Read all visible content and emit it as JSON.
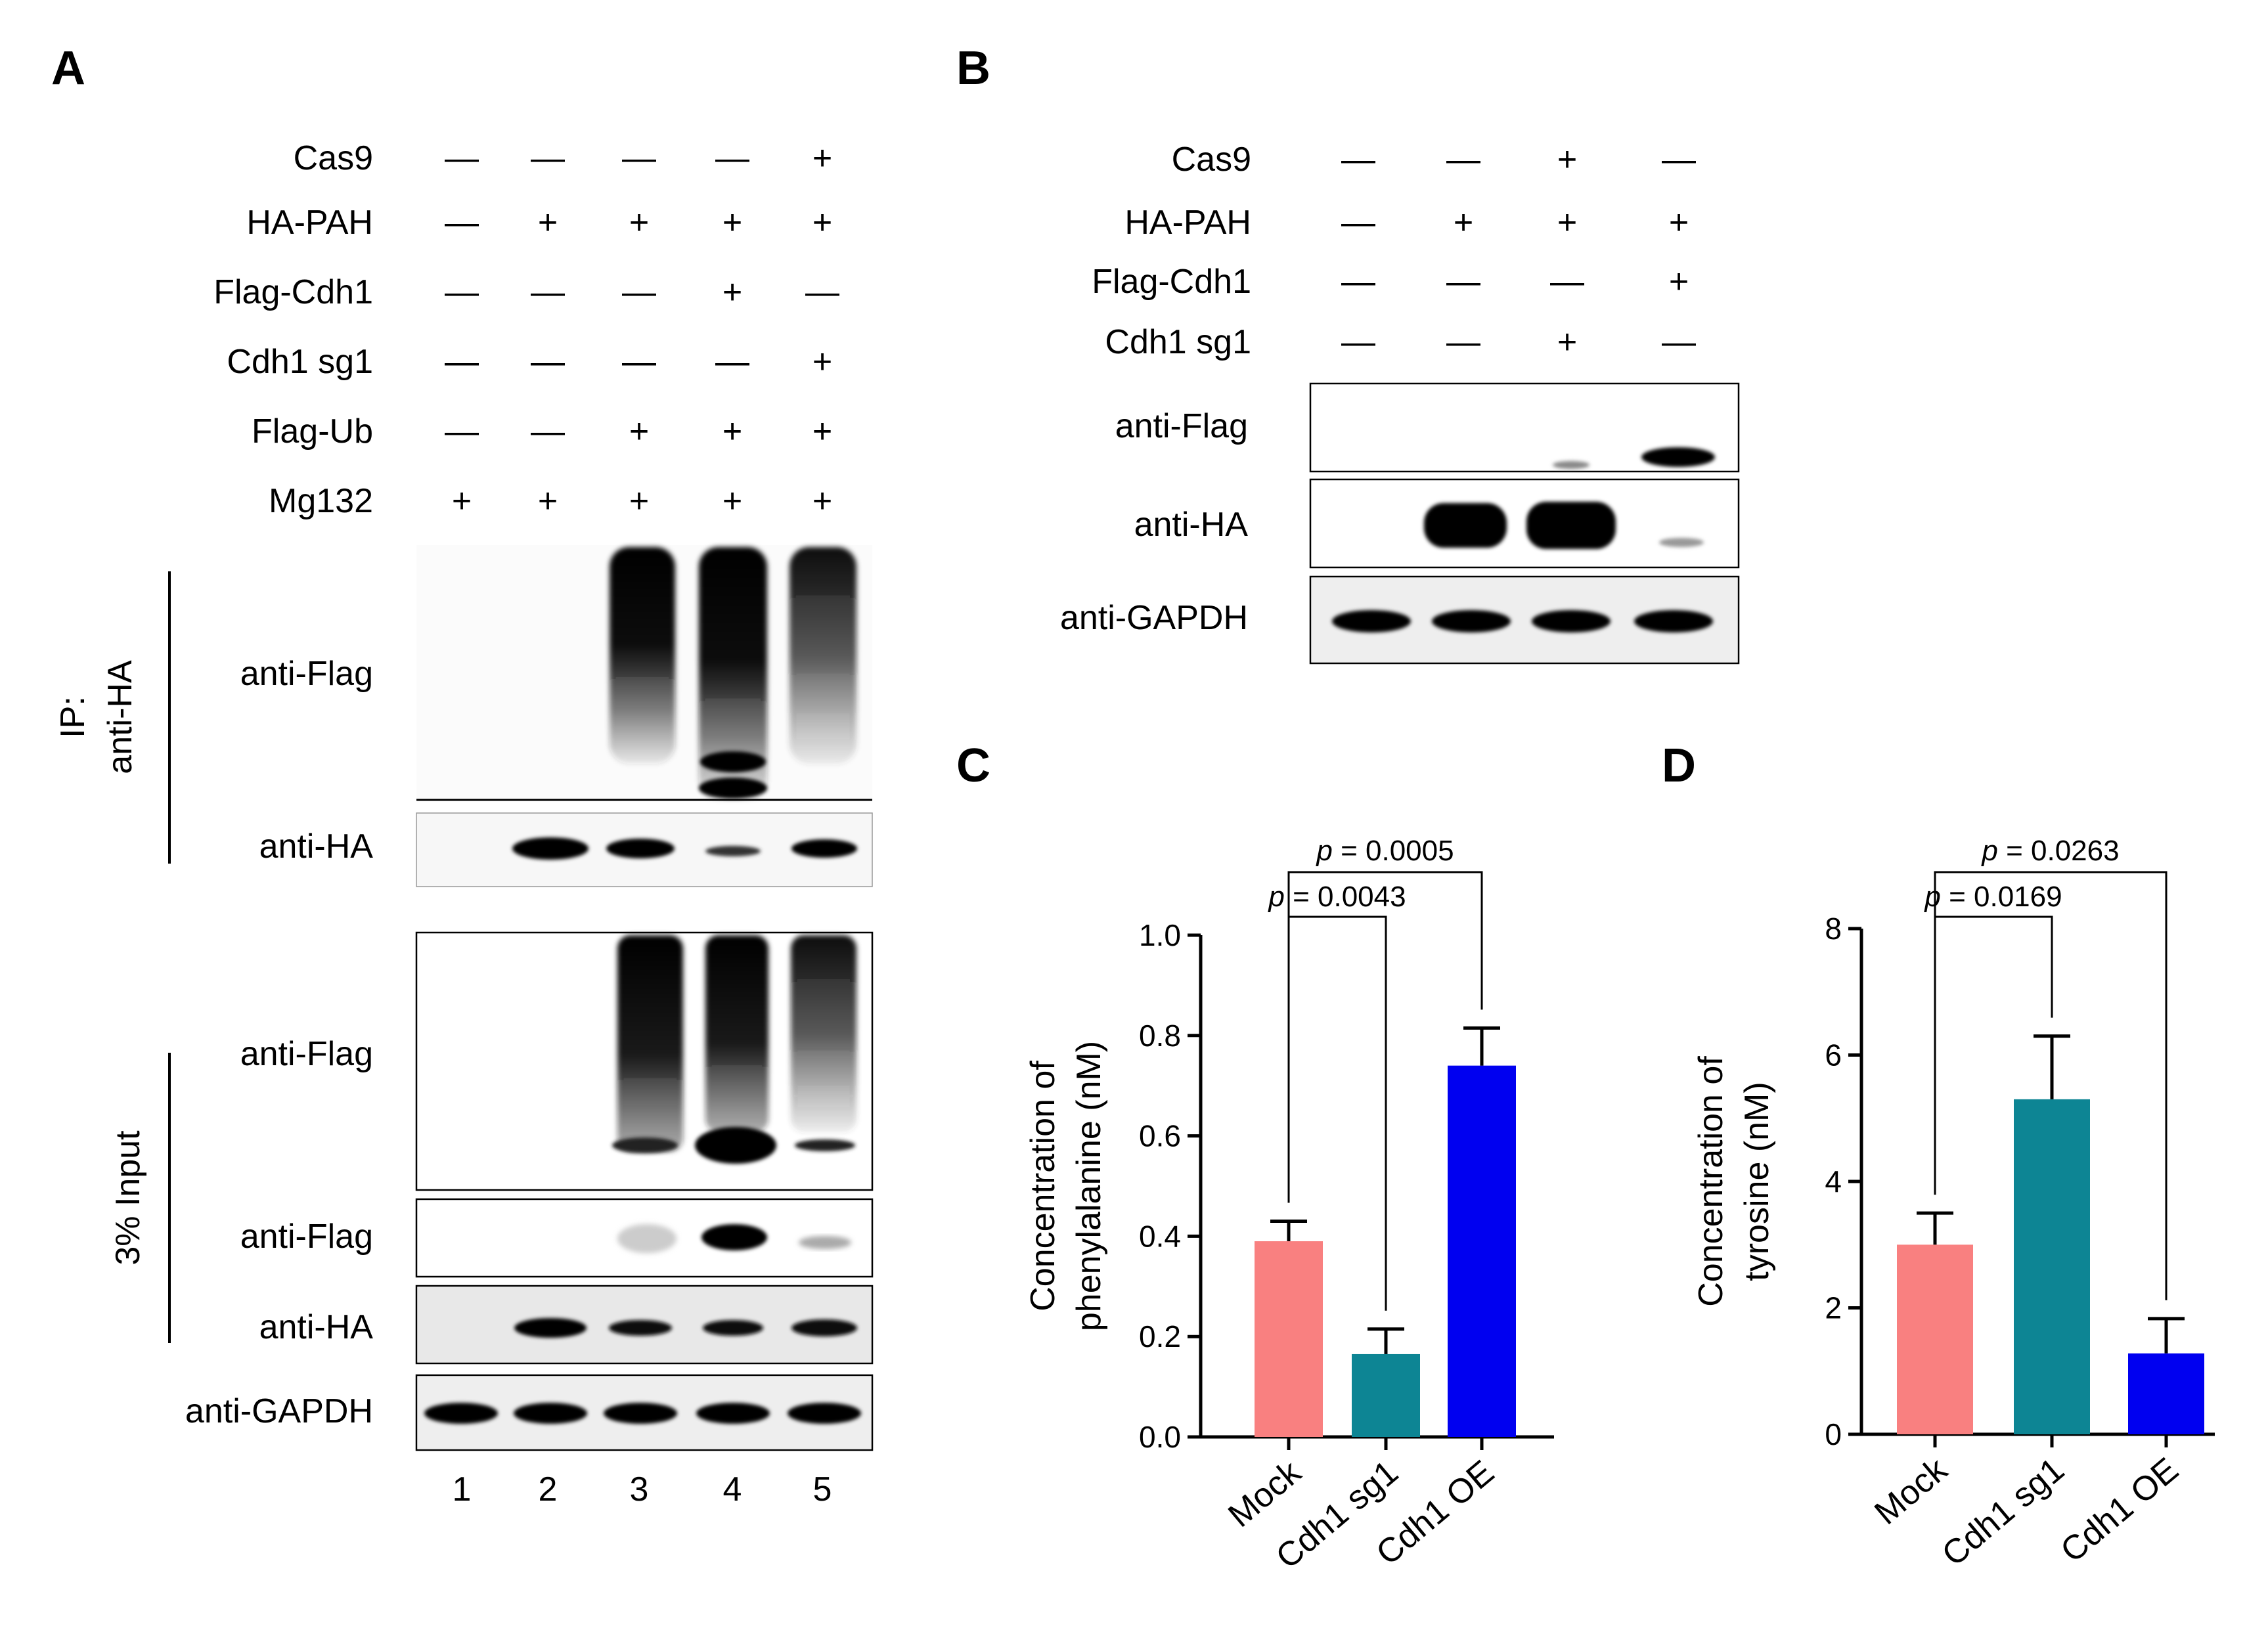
{
  "panels": {
    "A": {
      "letter": "A",
      "conditions": [
        {
          "label": "Cas9",
          "values": [
            "—",
            "—",
            "—",
            "—",
            "+"
          ]
        },
        {
          "label": "HA-PAH",
          "values": [
            "—",
            "+",
            "+",
            "+",
            "+"
          ]
        },
        {
          "label": "Flag-Cdh1",
          "values": [
            "—",
            "—",
            "—",
            "+",
            "—"
          ]
        },
        {
          "label": "Cdh1 sg1",
          "values": [
            "—",
            "—",
            "—",
            "—",
            "+"
          ]
        },
        {
          "label": "Flag-Ub",
          "values": [
            "—",
            "—",
            "+",
            "+",
            "+"
          ]
        },
        {
          "label": "Mg132",
          "values": [
            "+",
            "+",
            "+",
            "+",
            "+"
          ]
        }
      ],
      "ip_label_line1": "IP:",
      "ip_label_line2": "anti-HA",
      "input_label": "3% Input",
      "blots": [
        "anti-Flag",
        "anti-HA",
        "anti-Flag",
        "anti-Flag",
        "anti-HA",
        "anti-GAPDH"
      ],
      "lanes": [
        "1",
        "2",
        "3",
        "4",
        "5"
      ]
    },
    "B": {
      "letter": "B",
      "conditions": [
        {
          "label": "Cas9",
          "values": [
            "—",
            "—",
            "+",
            "—"
          ]
        },
        {
          "label": "HA-PAH",
          "values": [
            "—",
            "+",
            "+",
            "+"
          ]
        },
        {
          "label": "Flag-Cdh1",
          "values": [
            "—",
            "—",
            "—",
            "+"
          ]
        },
        {
          "label": "Cdh1 sg1",
          "values": [
            "—",
            "—",
            "+",
            "—"
          ]
        }
      ],
      "blots": [
        "anti-Flag",
        "anti-HA",
        "anti-GAPDH"
      ]
    },
    "C": {
      "letter": "C"
    },
    "D": {
      "letter": "D"
    }
  },
  "chart_data": [
    {
      "type": "bar",
      "panel": "C",
      "ylabel_line1": "Concentration of",
      "ylabel_line2": "phenylalanine (nM)",
      "categories": [
        "Mock",
        "Cdh1 sg1",
        "Cdh1 OE"
      ],
      "values": [
        0.39,
        0.165,
        0.74
      ],
      "errors": [
        0.04,
        0.05,
        0.075
      ],
      "colors": [
        "#f98080",
        "#0d8594",
        "#0000f0"
      ],
      "ylim": [
        0,
        1.0
      ],
      "yticks": [
        0.0,
        0.2,
        0.4,
        0.6,
        0.8,
        1.0
      ],
      "ytick_labels": [
        "0.0",
        "0.2",
        "0.4",
        "0.6",
        "0.8",
        "1.0"
      ],
      "comparisons": [
        {
          "from": 0,
          "to": 2,
          "p_symbol": "p",
          "p_text": " = 0.0005"
        },
        {
          "from": 0,
          "to": 1,
          "p_symbol": "p",
          "p_text": " = 0.0043"
        }
      ]
    },
    {
      "type": "bar",
      "panel": "D",
      "ylabel_line1": "Concentration of",
      "ylabel_line2": "tyrosine (nM)",
      "categories": [
        "Mock",
        "Cdh1 sg1",
        "Cdh1 OE"
      ],
      "values": [
        3.0,
        5.3,
        1.28
      ],
      "errors": [
        0.5,
        1.0,
        0.55
      ],
      "colors": [
        "#f98080",
        "#0d8594",
        "#0000f0"
      ],
      "ylim": [
        0,
        8
      ],
      "yticks": [
        0,
        2,
        4,
        6,
        8
      ],
      "ytick_labels": [
        "0",
        "2",
        "4",
        "6",
        "8"
      ],
      "comparisons": [
        {
          "from": 0,
          "to": 2,
          "p_symbol": "p",
          "p_text": " = 0.0263"
        },
        {
          "from": 0,
          "to": 1,
          "p_symbol": "p",
          "p_text": " = 0.0169"
        }
      ]
    }
  ]
}
